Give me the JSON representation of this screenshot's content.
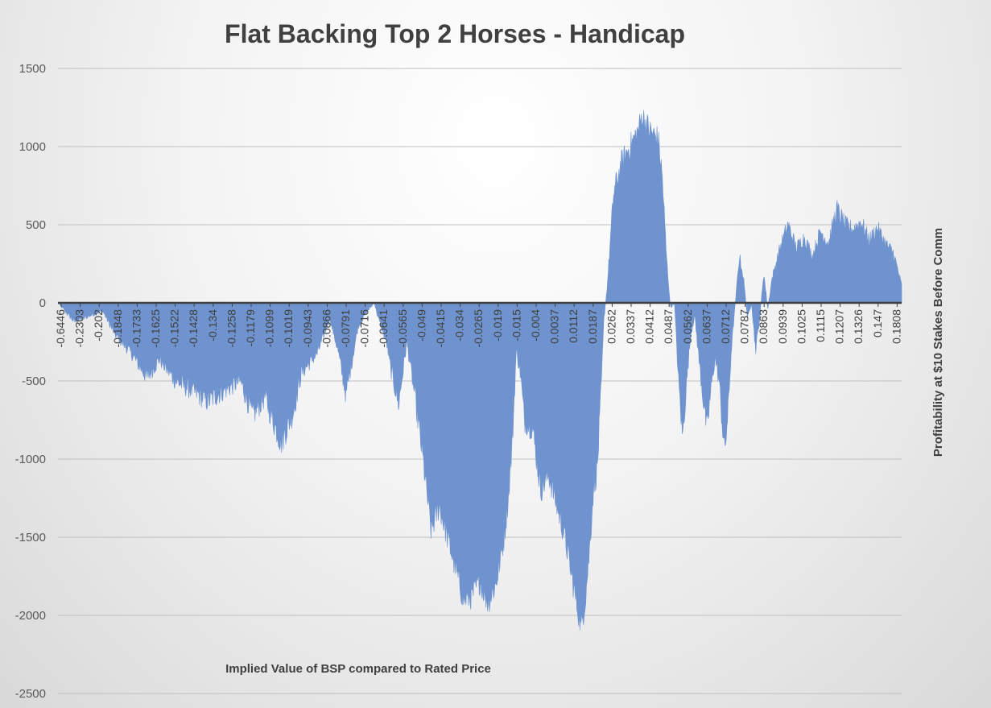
{
  "chart_data": {
    "type": "area",
    "title": "Flat Backing Top 2 Horses - Handicap",
    "xlabel": "Implied Value of BSP compared to Rated Price",
    "ylabel": "Profitability at $10 Stakes Before Comm",
    "ylim": [
      -2500,
      1500
    ],
    "yticks": [
      1500,
      1000,
      500,
      0,
      -500,
      -1000,
      -1500,
      -2000,
      -2500
    ],
    "grid": true,
    "legend": "none",
    "color": "#6e93cf",
    "x_tick_labels": [
      "-0.6446",
      "-0.2303",
      "-0.202",
      "-0.1848",
      "-0.1733",
      "-0.1625",
      "-0.1522",
      "-0.1428",
      "-0.134",
      "-0.1258",
      "-0.1179",
      "-0.1099",
      "-0.1019",
      "-0.0943",
      "-0.0866",
      "-0.0791",
      "-0.0716",
      "-0.0641",
      "-0.0565",
      "-0.049",
      "-0.0415",
      "-0.034",
      "-0.0265",
      "-0.019",
      "-0.015",
      "-0.004",
      "0.0037",
      "0.0112",
      "0.0187",
      "0.0262",
      "0.0337",
      "0.0412",
      "0.0487",
      "0.0562",
      "0.0637",
      "0.0712",
      "0.0787",
      "0.0863",
      "0.0939",
      "0.1025",
      "0.1115",
      "0.1207",
      "0.1326",
      "0.147",
      "0.1808"
    ],
    "profile_points": [
      [
        0,
        0
      ],
      [
        0.02,
        -120
      ],
      [
        0.04,
        -80
      ],
      [
        0.055,
        -50
      ],
      [
        0.07,
        -200
      ],
      [
        0.09,
        -320
      ],
      [
        0.11,
        -480
      ],
      [
        0.125,
        -360
      ],
      [
        0.145,
        -500
      ],
      [
        0.165,
        -560
      ],
      [
        0.185,
        -630
      ],
      [
        0.205,
        -560
      ],
      [
        0.225,
        -500
      ],
      [
        0.24,
        -720
      ],
      [
        0.255,
        -600
      ],
      [
        0.275,
        -900
      ],
      [
        0.29,
        -700
      ],
      [
        0.3,
        -450
      ],
      [
        0.32,
        -320
      ],
      [
        0.335,
        -100
      ],
      [
        0.345,
        -300
      ],
      [
        0.355,
        -590
      ],
      [
        0.37,
        -150
      ],
      [
        0.38,
        -60
      ],
      [
        0.39,
        0
      ],
      [
        0.395,
        -100
      ],
      [
        0.405,
        -250
      ],
      [
        0.41,
        -420
      ],
      [
        0.42,
        -650
      ],
      [
        0.43,
        -250
      ],
      [
        0.44,
        -600
      ],
      [
        0.45,
        -1000
      ],
      [
        0.46,
        -1460
      ],
      [
        0.47,
        -1300
      ],
      [
        0.48,
        -1500
      ],
      [
        0.49,
        -1700
      ],
      [
        0.5,
        -1900
      ],
      [
        0.51,
        -1880
      ],
      [
        0.52,
        -1780
      ],
      [
        0.53,
        -1920
      ],
      [
        0.54,
        -1800
      ],
      [
        0.55,
        -1500
      ],
      [
        0.555,
        -1250
      ],
      [
        0.56,
        -900
      ],
      [
        0.565,
        -300
      ],
      [
        0.57,
        -450
      ],
      [
        0.575,
        -750
      ],
      [
        0.585,
        -800
      ],
      [
        0.595,
        -1200
      ],
      [
        0.605,
        -1100
      ],
      [
        0.615,
        -1300
      ],
      [
        0.625,
        -1500
      ],
      [
        0.635,
        -1800
      ],
      [
        0.645,
        -2080
      ],
      [
        0.65,
        -1900
      ],
      [
        0.655,
        -1600
      ],
      [
        0.66,
        -1200
      ],
      [
        0.665,
        -1050
      ],
      [
        0.67,
        -500
      ],
      [
        0.673,
        -100
      ],
      [
        0.677,
        100
      ],
      [
        0.685,
        700
      ],
      [
        0.695,
        900
      ],
      [
        0.705,
        1000
      ],
      [
        0.715,
        1100
      ],
      [
        0.72,
        1200
      ],
      [
        0.73,
        1100
      ],
      [
        0.74,
        1050
      ],
      [
        0.745,
        800
      ],
      [
        0.75,
        300
      ],
      [
        0.755,
        -30
      ],
      [
        0.76,
        0
      ],
      [
        0.765,
        -500
      ],
      [
        0.77,
        -860
      ],
      [
        0.775,
        -500
      ],
      [
        0.78,
        -200
      ],
      [
        0.785,
        -80
      ],
      [
        0.79,
        -350
      ],
      [
        0.795,
        -600
      ],
      [
        0.8,
        -810
      ],
      [
        0.805,
        -550
      ],
      [
        0.81,
        -350
      ],
      [
        0.815,
        -500
      ],
      [
        0.82,
        -850
      ],
      [
        0.822,
        -950
      ],
      [
        0.826,
        -700
      ],
      [
        0.83,
        -300
      ],
      [
        0.835,
        0
      ],
      [
        0.84,
        300
      ],
      [
        0.845,
        160
      ],
      [
        0.85,
        -100
      ],
      [
        0.855,
        0
      ],
      [
        0.86,
        -300
      ],
      [
        0.865,
        -100
      ],
      [
        0.87,
        190
      ],
      [
        0.875,
        -40
      ],
      [
        0.88,
        150
      ],
      [
        0.89,
        350
      ],
      [
        0.9,
        500
      ],
      [
        0.91,
        350
      ],
      [
        0.92,
        420
      ],
      [
        0.93,
        300
      ],
      [
        0.94,
        460
      ],
      [
        0.95,
        380
      ],
      [
        0.96,
        600
      ],
      [
        0.97,
        500
      ],
      [
        0.98,
        470
      ],
      [
        0.99,
        520
      ],
      [
        1.0,
        400
      ],
      [
        1.01,
        480
      ],
      [
        1.02,
        380
      ],
      [
        1.03,
        320
      ],
      [
        1.04,
        110
      ]
    ]
  }
}
